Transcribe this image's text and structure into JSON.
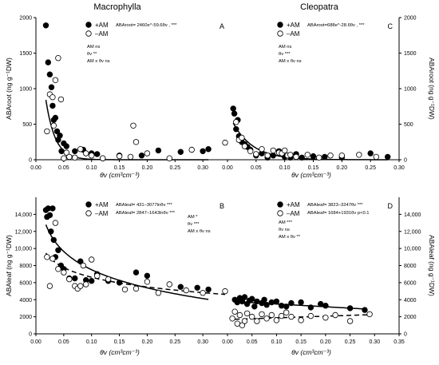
{
  "chart_data": [
    {
      "type": "scatter",
      "panel": "A",
      "title": "Macrophylla",
      "xlabel": "θv (cm³cm⁻³)",
      "ylabel": "ABAroot (ng g⁻¹DW)",
      "xlim": [
        0,
        0.35
      ],
      "ylim": [
        0,
        2000
      ],
      "xticks": [
        "0.00",
        "0.05",
        "0.10",
        "0.15",
        "0.20",
        "0.25",
        "0.30"
      ],
      "yticks": [
        "0",
        "500",
        "1000",
        "1500",
        "2000"
      ],
      "yaxis_side": "left",
      "legend": {
        "position": "top-left",
        "entries": [
          "+AM",
          "–AM"
        ]
      },
      "equation": "ABAroot= 2460e^-59.6θv , ***",
      "stats": [
        "AM  ns",
        "θv **",
        "AM x θv ns"
      ],
      "series": [
        {
          "name": "+AM",
          "marker": "filled-circle",
          "x": [
            0.018,
            0.022,
            0.025,
            0.028,
            0.03,
            0.032,
            0.035,
            0.038,
            0.04,
            0.043,
            0.046,
            0.05,
            0.055,
            0.07,
            0.085,
            0.1,
            0.11,
            0.12,
            0.15,
            0.19,
            0.22,
            0.26,
            0.3,
            0.31
          ],
          "y": [
            1890,
            1370,
            1200,
            1020,
            760,
            560,
            590,
            400,
            280,
            340,
            120,
            230,
            190,
            120,
            140,
            90,
            80,
            20,
            60,
            60,
            130,
            110,
            120,
            150
          ]
        },
        {
          "name": "–AM",
          "marker": "open-circle",
          "x": [
            0.02,
            0.025,
            0.03,
            0.032,
            0.035,
            0.04,
            0.045,
            0.05,
            0.055,
            0.06,
            0.07,
            0.08,
            0.09,
            0.1,
            0.12,
            0.15,
            0.17,
            0.175,
            0.18,
            0.2,
            0.24,
            0.28,
            0.34
          ],
          "y": [
            400,
            920,
            880,
            480,
            1120,
            1430,
            850,
            20,
            100,
            40,
            30,
            150,
            90,
            60,
            20,
            50,
            40,
            480,
            250,
            90,
            20,
            140,
            240
          ]
        }
      ],
      "fit": {
        "form": "exp",
        "a": 2460,
        "b": -59.6,
        "style": "solid"
      }
    },
    {
      "type": "scatter",
      "panel": "C",
      "title": "Cleopatra",
      "xlabel": "θv (cm³cm⁻³)",
      "ylabel": "ABAroot (ng g⁻¹DW)",
      "xlim": [
        0,
        0.3
      ],
      "ylim": [
        0,
        2000
      ],
      "xticks": [
        "0.00",
        "0.05",
        "0.10",
        "0.15",
        "0.20",
        "0.25",
        "0.30"
      ],
      "yticks": [
        "0",
        "500",
        "1000",
        "1500",
        "2000"
      ],
      "yaxis_side": "right",
      "legend": {
        "position": "top-left",
        "entries": [
          "+AM",
          "–AM"
        ]
      },
      "equation": "ABAroot=688e^-28.6θv , ***",
      "stats": [
        "AM  ns",
        "θv ***",
        "AM x θv ns"
      ],
      "series": [
        {
          "name": "+AM",
          "marker": "filled-circle",
          "x": [
            0.01,
            0.012,
            0.015,
            0.018,
            0.02,
            0.025,
            0.03,
            0.035,
            0.04,
            0.05,
            0.06,
            0.07,
            0.08,
            0.09,
            0.1,
            0.11,
            0.12,
            0.13,
            0.15,
            0.17,
            0.2,
            0.25,
            0.28
          ],
          "y": [
            720,
            650,
            430,
            560,
            330,
            250,
            220,
            180,
            140,
            60,
            90,
            30,
            60,
            120,
            40,
            30,
            80,
            30,
            50,
            40,
            30,
            90,
            40
          ]
        },
        {
          "name": "–AM",
          "marker": "open-circle",
          "x": [
            0.015,
            0.02,
            0.025,
            0.03,
            0.04,
            0.05,
            0.06,
            0.07,
            0.08,
            0.09,
            0.095,
            0.1,
            0.105,
            0.11,
            0.12,
            0.14,
            0.16,
            0.18,
            0.2,
            0.23,
            0.26
          ],
          "y": [
            530,
            280,
            310,
            190,
            120,
            80,
            150,
            60,
            130,
            100,
            90,
            130,
            60,
            70,
            40,
            70,
            30,
            60,
            60,
            70,
            40
          ]
        }
      ],
      "fit": {
        "form": "exp",
        "a": 688,
        "b": -28.6,
        "style": "solid"
      }
    },
    {
      "type": "scatter",
      "panel": "B",
      "title": "",
      "xlabel": "θv (cm³cm⁻³)",
      "ylabel": "ABAleaf (ng g⁻¹DW)",
      "xlim": [
        0,
        0.35
      ],
      "ylim": [
        0,
        16000
      ],
      "xticks": [
        "0.00",
        "0.05",
        "0.10",
        "0.15",
        "0.20",
        "0.25",
        "0.30"
      ],
      "yticks": [
        "0",
        "2000",
        "4000",
        "6000",
        "8000",
        "10,000",
        "12,000",
        "14,000"
      ],
      "yaxis_side": "left",
      "legend": {
        "position": "top-left",
        "entries": [
          "+AM",
          "–AM"
        ]
      },
      "equations": [
        "ABAleaf= 431–3077lnθv ***",
        "ABAleaf= 2847–1643lnθv ***"
      ],
      "stats": [
        "AM  *",
        "θv ***",
        "AM x θv ns"
      ],
      "series": [
        {
          "name": "+AM",
          "marker": "filled-circle",
          "x": [
            0.018,
            0.02,
            0.022,
            0.025,
            0.027,
            0.03,
            0.032,
            0.035,
            0.04,
            0.045,
            0.05,
            0.06,
            0.07,
            0.08,
            0.09,
            0.1,
            0.11,
            0.13,
            0.15,
            0.18,
            0.2,
            0.26,
            0.29,
            0.31
          ],
          "y": [
            14500,
            13700,
            14700,
            13900,
            12000,
            14700,
            11000,
            9000,
            9800,
            8000,
            7600,
            6500,
            6500,
            8500,
            6300,
            6200,
            7000,
            6200,
            6000,
            7200,
            6800,
            5500,
            5400,
            5200
          ]
        },
        {
          "name": "–AM",
          "marker": "open-circle",
          "x": [
            0.02,
            0.025,
            0.03,
            0.035,
            0.04,
            0.05,
            0.06,
            0.07,
            0.075,
            0.08,
            0.085,
            0.09,
            0.1,
            0.11,
            0.13,
            0.16,
            0.18,
            0.2,
            0.22,
            0.24,
            0.27,
            0.3,
            0.34
          ],
          "y": [
            9000,
            5600,
            8800,
            13000,
            7600,
            7200,
            6400,
            5600,
            5300,
            5600,
            8000,
            5800,
            8700,
            6800,
            6400,
            5200,
            5300,
            6100,
            4800,
            5800,
            5100,
            4800,
            5000
          ]
        }
      ],
      "fits": [
        {
          "form": "ln",
          "a": 431,
          "b": -3077,
          "style": "solid",
          "series": "+AM"
        },
        {
          "form": "ln",
          "a": 2847,
          "b": -1643,
          "style": "dashed",
          "series": "–AM"
        }
      ]
    },
    {
      "type": "scatter",
      "panel": "D",
      "title": "",
      "xlabel": "θv (cm³cm⁻³)",
      "ylabel": "ABAleaf (ng g⁻¹DW)",
      "xlim": [
        0,
        0.35
      ],
      "ylim": [
        0,
        16000
      ],
      "xticks": [
        "0.00",
        "0.05",
        "0.10",
        "0.15",
        "0.20",
        "0.25",
        "0.30",
        "0.35"
      ],
      "yticks": [
        "0",
        "2000",
        "4000",
        "6000",
        "8000",
        "10,000",
        "12,000",
        "14,000"
      ],
      "yaxis_side": "right",
      "legend": {
        "position": "top-left",
        "entries": [
          "+AM",
          "–AM"
        ]
      },
      "equations": [
        "ABAleaf= 3823–3247θv ***",
        "ABAleaf= 1684+1931θv p<0.1"
      ],
      "stats": [
        "AM ***",
        "θv ns",
        "AM x θv **"
      ],
      "series": [
        {
          "name": "+AM",
          "marker": "filled-circle",
          "x": [
            0.015,
            0.02,
            0.025,
            0.03,
            0.035,
            0.04,
            0.045,
            0.05,
            0.055,
            0.06,
            0.07,
            0.075,
            0.08,
            0.09,
            0.1,
            0.11,
            0.12,
            0.13,
            0.15,
            0.17,
            0.19,
            0.2,
            0.25,
            0.28
          ],
          "y": [
            4000,
            3700,
            4200,
            3800,
            4300,
            3500,
            3900,
            4100,
            3200,
            3800,
            3600,
            4000,
            3400,
            3700,
            3800,
            3300,
            3200,
            3600,
            3700,
            3100,
            3500,
            3300,
            3000,
            2800
          ]
        },
        {
          "name": "–AM",
          "marker": "open-circle",
          "x": [
            0.01,
            0.015,
            0.02,
            0.025,
            0.03,
            0.035,
            0.04,
            0.05,
            0.06,
            0.07,
            0.08,
            0.09,
            0.1,
            0.11,
            0.12,
            0.13,
            0.15,
            0.17,
            0.2,
            0.22,
            0.25,
            0.29
          ],
          "y": [
            1800,
            2600,
            1200,
            2200,
            1000,
            1500,
            2400,
            2000,
            1500,
            2300,
            1800,
            2200,
            1600,
            2100,
            2500,
            2000,
            1600,
            2100,
            1900,
            2200,
            1500,
            2300
          ]
        }
      ],
      "fits": [
        {
          "form": "linear",
          "a": 3823,
          "b": -3247,
          "style": "solid",
          "series": "+AM"
        },
        {
          "form": "linear",
          "a": 1684,
          "b": 1931,
          "style": "dashed",
          "series": "–AM"
        }
      ]
    }
  ]
}
